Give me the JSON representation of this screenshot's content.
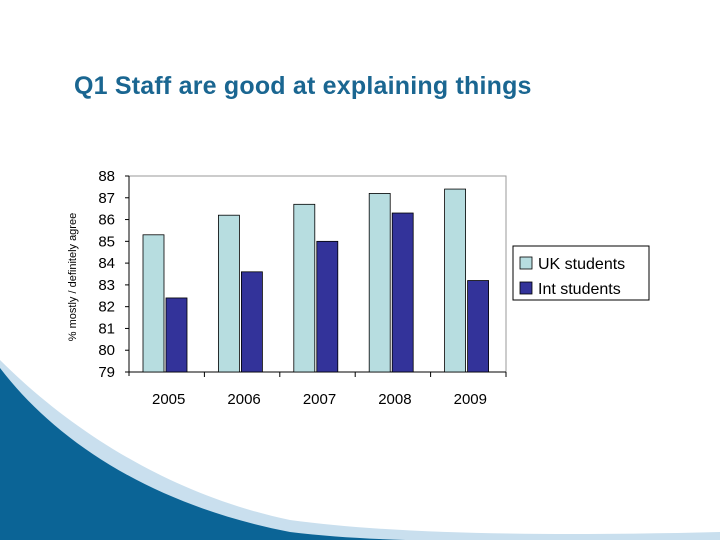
{
  "slide": {
    "title": "Q1 Staff are good at explaining things"
  },
  "chart_data": {
    "type": "bar",
    "categories": [
      "2005",
      "2006",
      "2007",
      "2008",
      "2009"
    ],
    "series": [
      {
        "name": "UK students",
        "values": [
          85.3,
          86.2,
          86.7,
          87.2,
          87.4
        ],
        "color": "#b7dde0"
      },
      {
        "name": "Int students",
        "values": [
          82.4,
          83.6,
          85.0,
          86.3,
          83.2
        ],
        "color": "#33339a"
      }
    ],
    "title": "",
    "xlabel": "",
    "ylabel": "% mostly / definitely agree",
    "ylim": [
      79,
      88
    ],
    "yticks": [
      "79",
      "80",
      "81",
      "82",
      "83",
      "84",
      "85",
      "86",
      "87",
      "88"
    ],
    "grid": false,
    "legend": "right"
  },
  "colors": {
    "title": "#1a6691",
    "wave_dark": "#0b6496",
    "wave_light": "#c9dfee"
  }
}
